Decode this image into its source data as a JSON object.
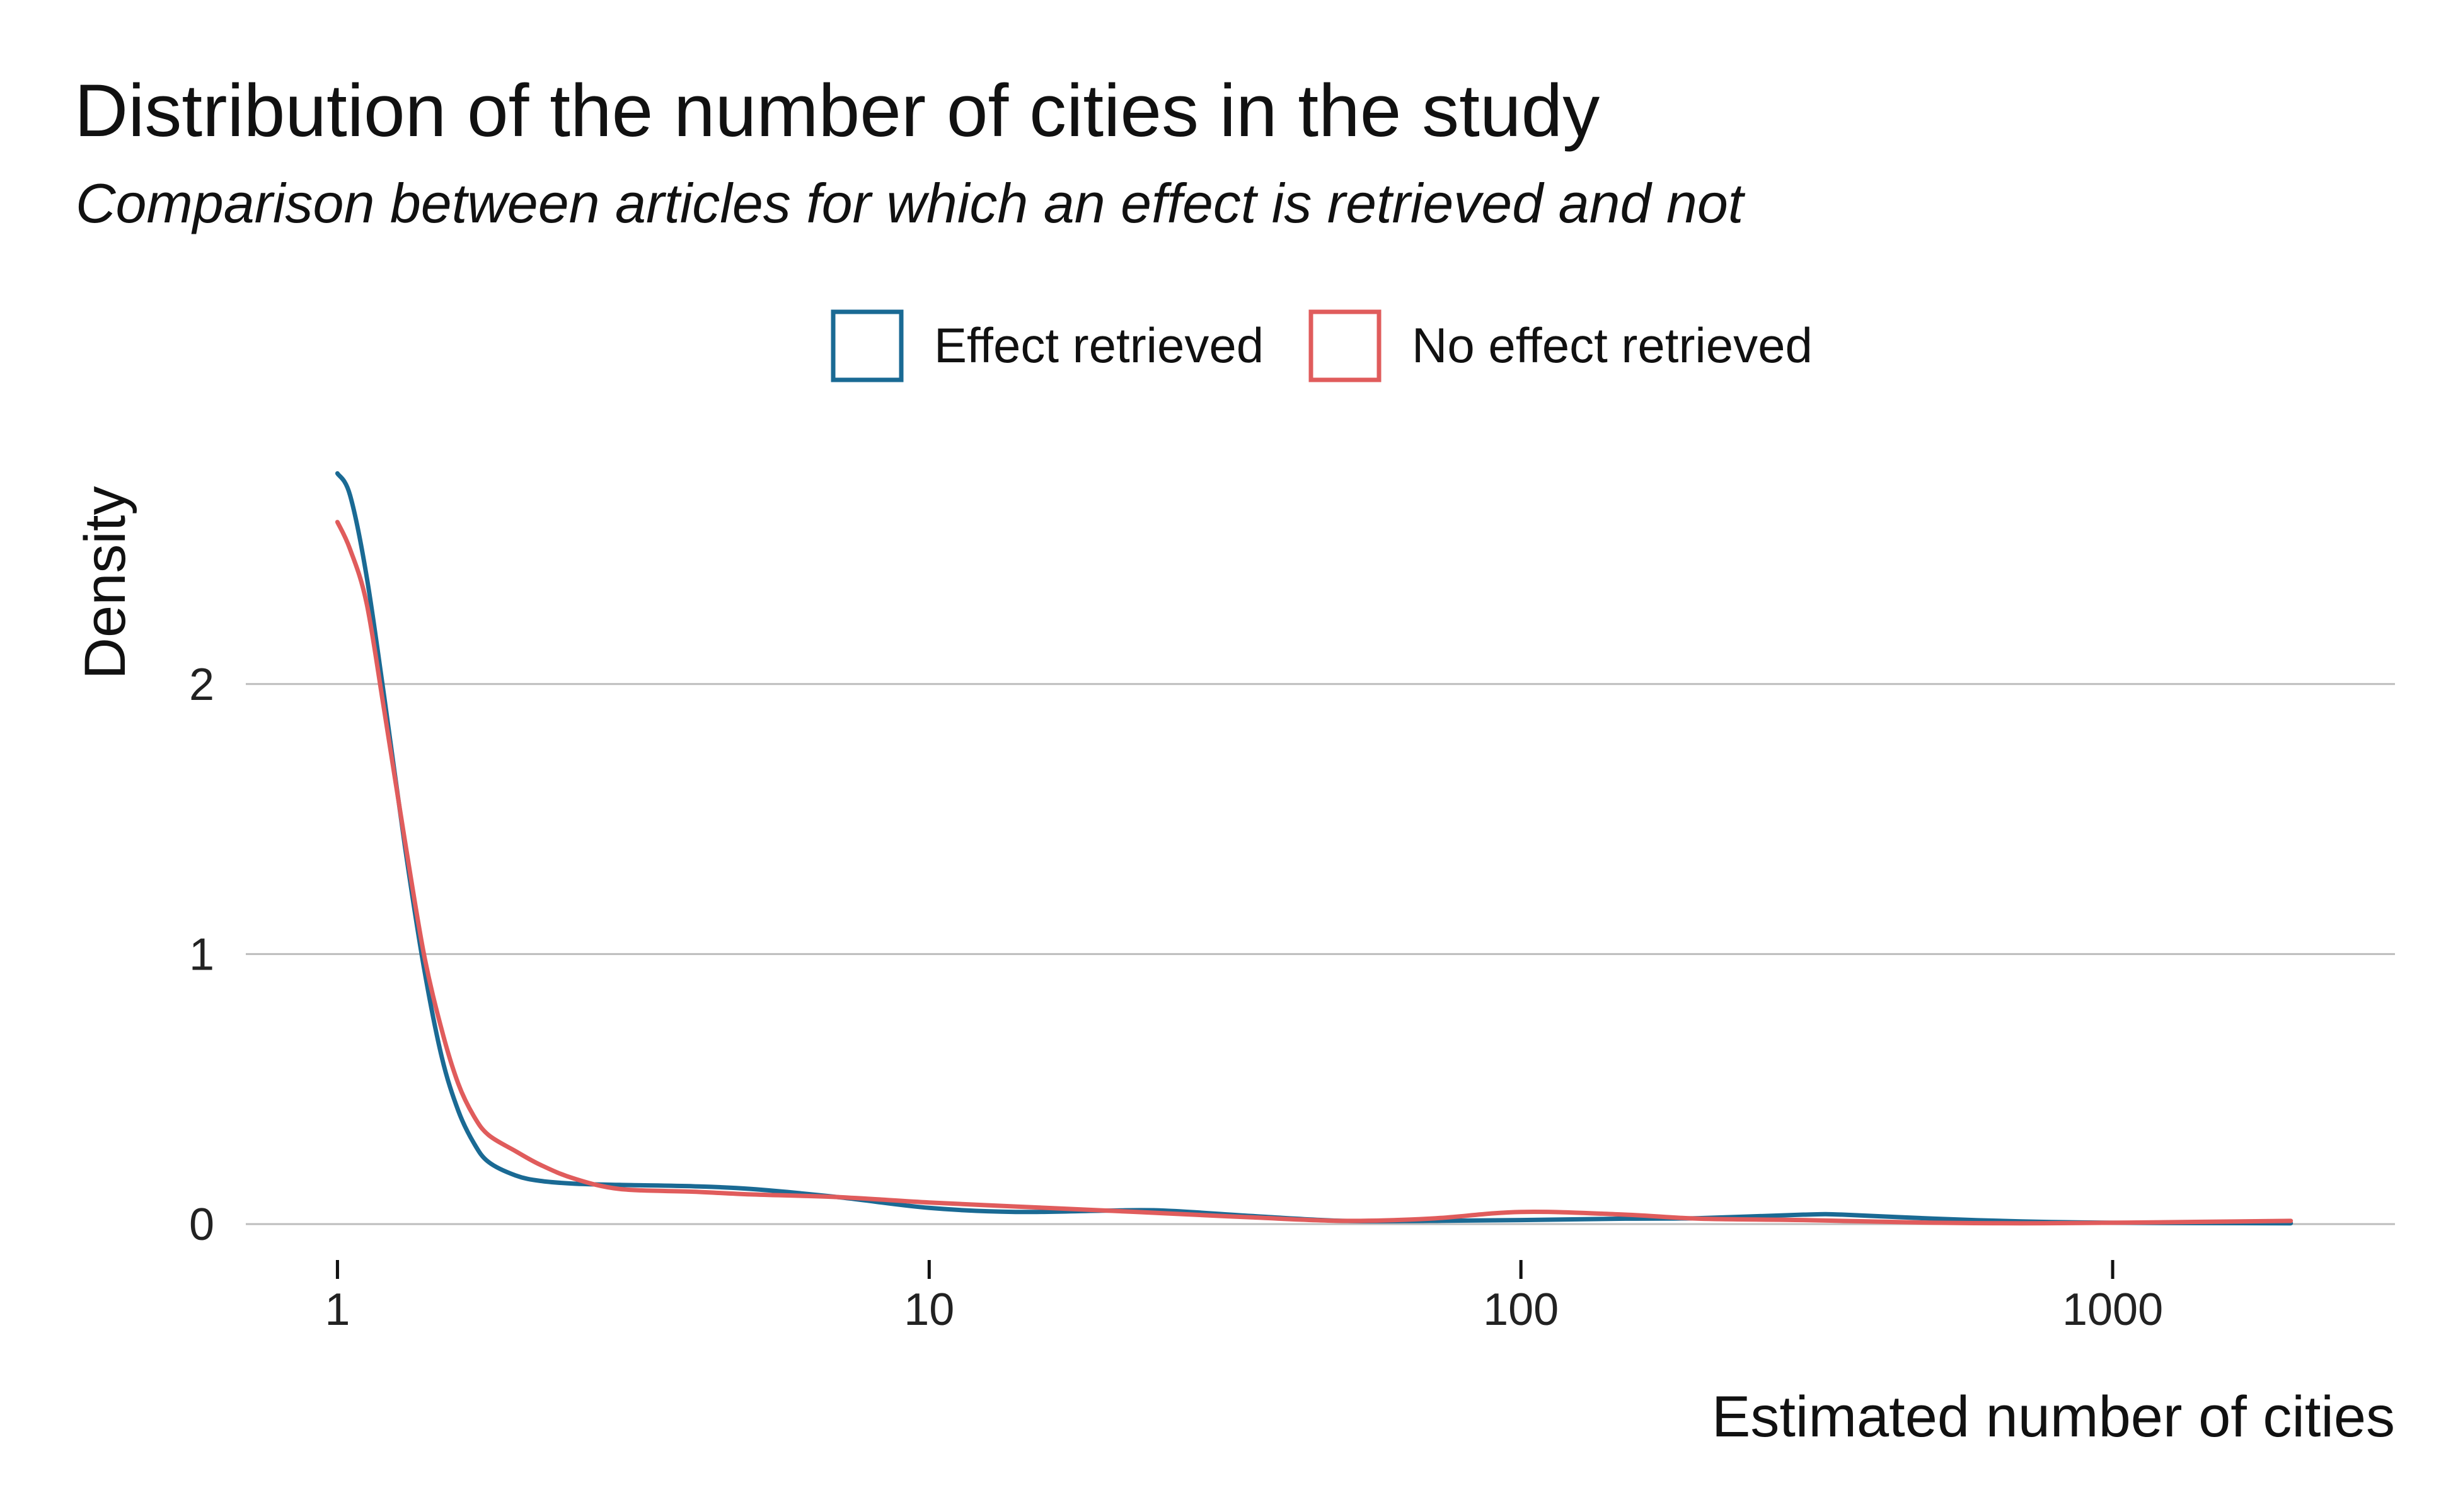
{
  "chart_data": {
    "type": "line",
    "title": "Distribution of the number of cities in the study",
    "subtitle": "Comparison between articles for which an effect is retrieved and not",
    "xlabel": "Estimated number of cities",
    "ylabel": "Density",
    "x_scale": "log10",
    "xlim": [
      0.7,
      3000
    ],
    "ylim": [
      0,
      2.9
    ],
    "x_ticks": [
      1,
      10,
      100,
      1000
    ],
    "x_tick_labels": [
      "1",
      "10",
      "100",
      "1000"
    ],
    "y_ticks": [
      0,
      1,
      2
    ],
    "y_tick_labels": [
      "0",
      "1",
      "2"
    ],
    "grid": "horizontal major lines",
    "legend_position": "top",
    "series": [
      {
        "name": "Effect retrieved",
        "color": "#1a6a94",
        "x": [
          1.0,
          1.05,
          1.12,
          1.2,
          1.3,
          1.4,
          1.5,
          1.6,
          1.7,
          1.8,
          2.0,
          2.2,
          2.5,
          3.0,
          4.0,
          5.0,
          7.0,
          10,
          14,
          20,
          25,
          35,
          50,
          70,
          100,
          150,
          200,
          300,
          350,
          500,
          700,
          1000,
          2000
        ],
        "y": [
          2.78,
          2.7,
          2.4,
          1.95,
          1.4,
          0.95,
          0.62,
          0.42,
          0.3,
          0.23,
          0.18,
          0.16,
          0.15,
          0.145,
          0.14,
          0.13,
          0.1,
          0.06,
          0.045,
          0.05,
          0.05,
          0.03,
          0.012,
          0.012,
          0.015,
          0.02,
          0.022,
          0.035,
          0.035,
          0.02,
          0.01,
          0.005,
          0.003
        ]
      },
      {
        "name": "No effect retrieved",
        "color": "#e05c5c",
        "x": [
          1.0,
          1.05,
          1.12,
          1.2,
          1.3,
          1.4,
          1.5,
          1.6,
          1.7,
          1.8,
          2.0,
          2.2,
          2.5,
          3.0,
          4.0,
          5.0,
          7.0,
          10,
          14,
          20,
          25,
          35,
          50,
          70,
          100,
          150,
          200,
          300,
          500,
          700,
          1000,
          2000
        ],
        "y": [
          2.6,
          2.5,
          2.3,
          1.9,
          1.42,
          1.0,
          0.72,
          0.52,
          0.4,
          0.33,
          0.27,
          0.22,
          0.17,
          0.13,
          0.12,
          0.11,
          0.1,
          0.08,
          0.065,
          0.05,
          0.04,
          0.025,
          0.012,
          0.02,
          0.045,
          0.035,
          0.02,
          0.015,
          0.005,
          0.003,
          0.005,
          0.012
        ]
      }
    ]
  }
}
